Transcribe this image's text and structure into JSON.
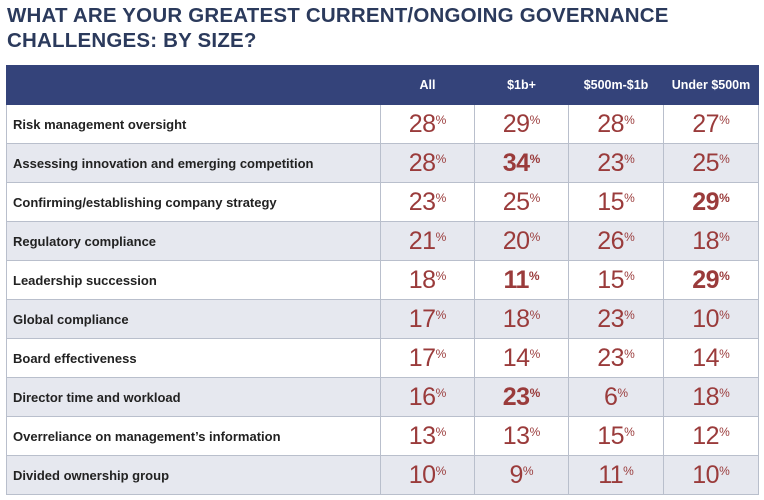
{
  "title": "WHAT ARE YOUR GREATEST CURRENT/ONGOING GOVERNANCE\nCHALLENGES: BY SIZE?",
  "colors": {
    "header_bg": "#34437a",
    "value_text": "#9a3b3b",
    "stripe": "#e6e8ef",
    "title_text": "#2b3a5c"
  },
  "chart_data": {
    "type": "table",
    "columns": [
      "",
      "All",
      "$1b+",
      "$500m-$1b",
      "Under $500m"
    ],
    "percent_symbol": "%",
    "rows": [
      {
        "label": "Risk management oversight",
        "values": [
          28,
          29,
          28,
          27
        ],
        "highlight": [
          false,
          false,
          false,
          false
        ]
      },
      {
        "label": "Assessing innovation and emerging competition",
        "values": [
          28,
          34,
          23,
          25
        ],
        "highlight": [
          false,
          true,
          false,
          false
        ]
      },
      {
        "label": "Confirming/establishing company strategy",
        "values": [
          23,
          25,
          15,
          29
        ],
        "highlight": [
          false,
          false,
          false,
          true
        ]
      },
      {
        "label": "Regulatory compliance",
        "values": [
          21,
          20,
          26,
          18
        ],
        "highlight": [
          false,
          false,
          false,
          false
        ]
      },
      {
        "label": "Leadership succession",
        "values": [
          18,
          11,
          15,
          29
        ],
        "highlight": [
          false,
          true,
          false,
          true
        ]
      },
      {
        "label": "Global compliance",
        "values": [
          17,
          18,
          23,
          10
        ],
        "highlight": [
          false,
          false,
          false,
          false
        ]
      },
      {
        "label": "Board effectiveness",
        "values": [
          17,
          14,
          23,
          14
        ],
        "highlight": [
          false,
          false,
          false,
          false
        ]
      },
      {
        "label": "Director time and workload",
        "values": [
          16,
          23,
          6,
          18
        ],
        "highlight": [
          false,
          true,
          false,
          false
        ]
      },
      {
        "label": "Overreliance on management’s information",
        "values": [
          13,
          13,
          15,
          12
        ],
        "highlight": [
          false,
          false,
          false,
          false
        ]
      },
      {
        "label": "Divided ownership group",
        "values": [
          10,
          9,
          11,
          10
        ],
        "highlight": [
          false,
          false,
          false,
          false
        ]
      }
    ]
  }
}
